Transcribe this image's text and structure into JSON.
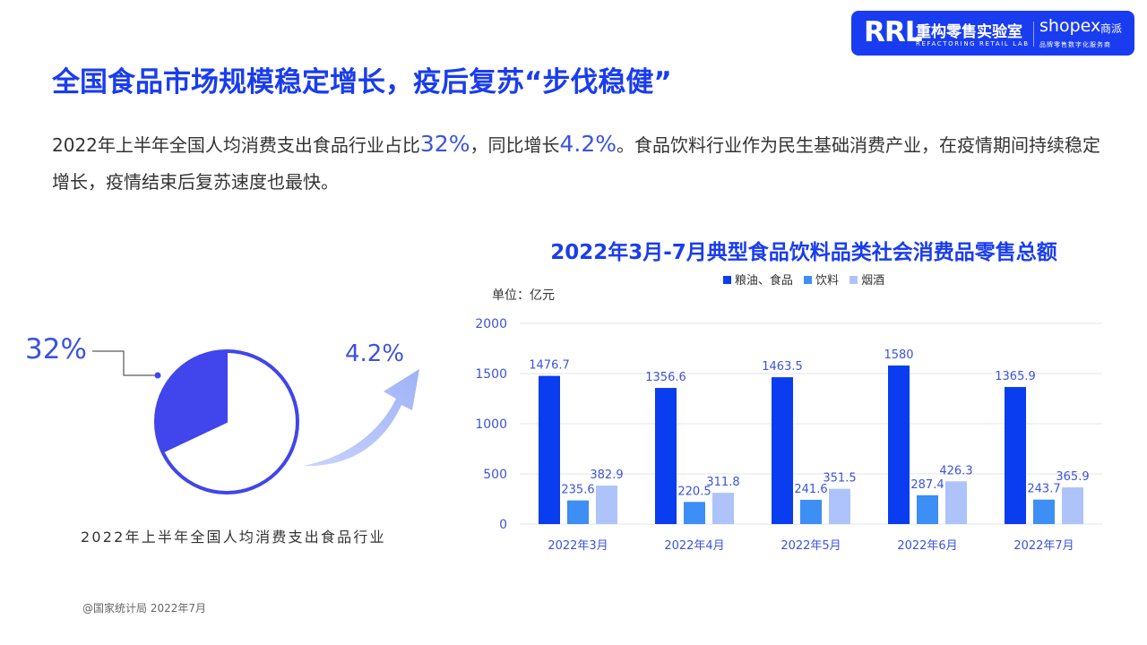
{
  "logo": {
    "rrl": "RRL",
    "name_cn": "重构零售实验室",
    "name_en": "REFACTORING RETAIL LAB",
    "partner": "shopex",
    "partner_cn": "商派",
    "partner_tag": "品牌零售数字化服务商"
  },
  "title": "全国食品市场规模稳定增长，疫后复苏“步伐稳健”",
  "description": {
    "part1": "2022年上半年全国人均消费支出食品行业占比",
    "share": "32%",
    "part2": "，同比增长",
    "growth": "4.2%",
    "part3": "。食品饮料行业作为民生基础消费产业，在疫情期间持续稳定增长，疫情结束后复苏速度也最快。"
  },
  "pie": {
    "label": "32%",
    "value_percent": 32,
    "caption": "2022年上半年全国人均消费支出食品行业",
    "color_fill": "#4045ec",
    "color_stroke": "#4045ec"
  },
  "growth_arrow": {
    "label": "4.2%",
    "color": "#adbdfa"
  },
  "unit_label": "单位：亿元",
  "source": "@国家统计局 2022年7月",
  "chart_data": {
    "type": "bar",
    "title": "2022年3月-7月典型食品饮料品类社会消费品零售总额",
    "categories": [
      "2022年3月",
      "2022年4月",
      "2022年5月",
      "2022年6月",
      "2022年7月"
    ],
    "series": [
      {
        "name": "粮油、食品",
        "color": "#0a3cf0",
        "values": [
          1476.7,
          1356.6,
          1463.5,
          1580,
          1365.9
        ]
      },
      {
        "name": "饮料",
        "color": "#3d8ef5",
        "values": [
          235.6,
          220.5,
          241.6,
          287.4,
          243.7
        ]
      },
      {
        "name": "烟酒",
        "color": "#adc3fa",
        "values": [
          382.9,
          311.8,
          351.5,
          426.3,
          365.9
        ]
      }
    ],
    "ylim": [
      0,
      2000
    ],
    "yticks": [
      0,
      500,
      1000,
      1500,
      2000
    ],
    "grid": true,
    "legend_position": "top"
  }
}
